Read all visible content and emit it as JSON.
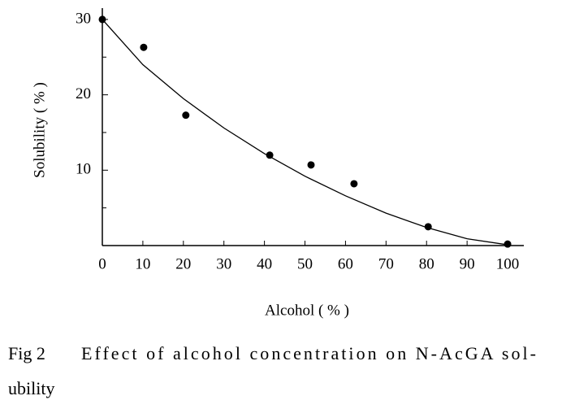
{
  "chart_data": {
    "type": "scatter",
    "x_label": "Alcohol ( % )",
    "y_label": "Solubility ( % )",
    "caption": {
      "label": "Fig 2",
      "lines": [
        "Effect of alcohol concentration on N-AcGA sol-",
        "ubility"
      ]
    },
    "x": [
      0,
      10.2,
      20.6,
      41.3,
      51.5,
      62.1,
      80.4,
      100
    ],
    "values": [
      30,
      26.3,
      17.3,
      12.0,
      10.7,
      8.2,
      2.5,
      0.2
    ],
    "color": "#000000",
    "fit": {
      "x": [
        0,
        10,
        20,
        30,
        40,
        50,
        60,
        70,
        80,
        90,
        100
      ],
      "values": [
        30,
        24,
        19.5,
        15.6,
        12.2,
        9.2,
        6.6,
        4.3,
        2.4,
        0.9,
        0.1
      ]
    },
    "xlim": [
      0,
      104
    ],
    "ylim": [
      0,
      31.5
    ],
    "xticks": [
      0,
      10,
      20,
      30,
      40,
      50,
      60,
      70,
      80,
      90,
      100
    ],
    "yticks": [
      10,
      20,
      30
    ],
    "y_minor_ticks": [
      5,
      15,
      25
    ],
    "grid": false
  }
}
